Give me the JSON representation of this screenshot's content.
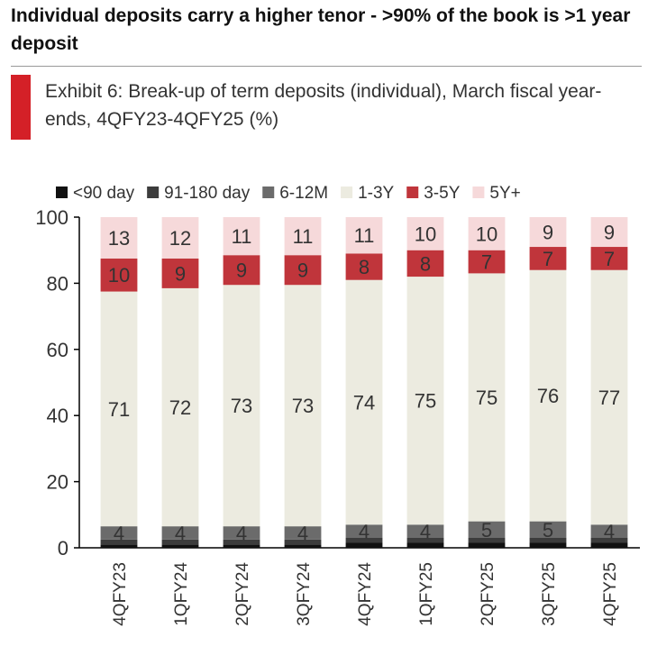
{
  "heading": "Individual deposits carry a higher tenor - >90% of the book is >1 year deposit",
  "exhibit": {
    "label": "Exhibit 6",
    "caption": ": Break-up of term deposits (individual), March fiscal year-ends, 4QFY23-4QFY25 (%)"
  },
  "colors": {
    "accent": "#d42027",
    "lt90": "#111111",
    "d91_180": "#3c3c3c",
    "m6_12": "#6b6b6b",
    "y1_3": "#ecebe0",
    "y3_5": "#c0353b",
    "y5plus": "#f6d9da"
  },
  "chart_data": {
    "type": "bar",
    "stacked": true,
    "categories": [
      "4QFY23",
      "1QFY24",
      "2QFY24",
      "3QFY24",
      "4QFY24",
      "1QFY25",
      "2QFY25",
      "3QFY25",
      "4QFY25"
    ],
    "series": [
      {
        "name": "<90 day",
        "color": "#111111",
        "values": [
          1,
          1,
          1,
          1,
          1.5,
          1.5,
          1.5,
          1.5,
          1.5
        ],
        "labels": [
          "",
          "",
          "",
          "",
          "",
          "",
          "",
          "",
          ""
        ]
      },
      {
        "name": "91-180 day",
        "color": "#3c3c3c",
        "values": [
          1.5,
          1.5,
          1.5,
          1.5,
          1.5,
          1.5,
          1.5,
          1.5,
          1.5
        ],
        "labels": [
          "",
          "",
          "",
          "",
          "",
          "",
          "",
          "",
          ""
        ]
      },
      {
        "name": "6-12M",
        "color": "#6b6b6b",
        "values": [
          4,
          4,
          4,
          4,
          4,
          4,
          5,
          5,
          4
        ],
        "labels": [
          "4",
          "4",
          "4",
          "4",
          "4",
          "4",
          "5",
          "5",
          "4"
        ]
      },
      {
        "name": "1-3Y",
        "color": "#ecebe0",
        "values": [
          71,
          72,
          73,
          73,
          74,
          75,
          75,
          76,
          77
        ],
        "labels": [
          "71",
          "72",
          "73",
          "73",
          "74",
          "75",
          "75",
          "76",
          "77"
        ]
      },
      {
        "name": "3-5Y",
        "color": "#c0353b",
        "values": [
          10,
          9,
          9,
          9,
          8,
          8,
          7,
          7,
          7
        ],
        "labels": [
          "10",
          "9",
          "9",
          "9",
          "8",
          "8",
          "7",
          "7",
          "7"
        ]
      },
      {
        "name": "5Y+",
        "color": "#f6d9da",
        "values": [
          12.5,
          12.5,
          11.5,
          11.5,
          11,
          10,
          10,
          9,
          9
        ],
        "labels": [
          "13",
          "12",
          "11",
          "11",
          "11",
          "10",
          "10",
          "9",
          "9"
        ]
      }
    ],
    "ylim": [
      0,
      100
    ],
    "yticks": [
      0,
      20,
      40,
      60,
      80,
      100
    ],
    "grid": false,
    "legend_position": "top"
  }
}
